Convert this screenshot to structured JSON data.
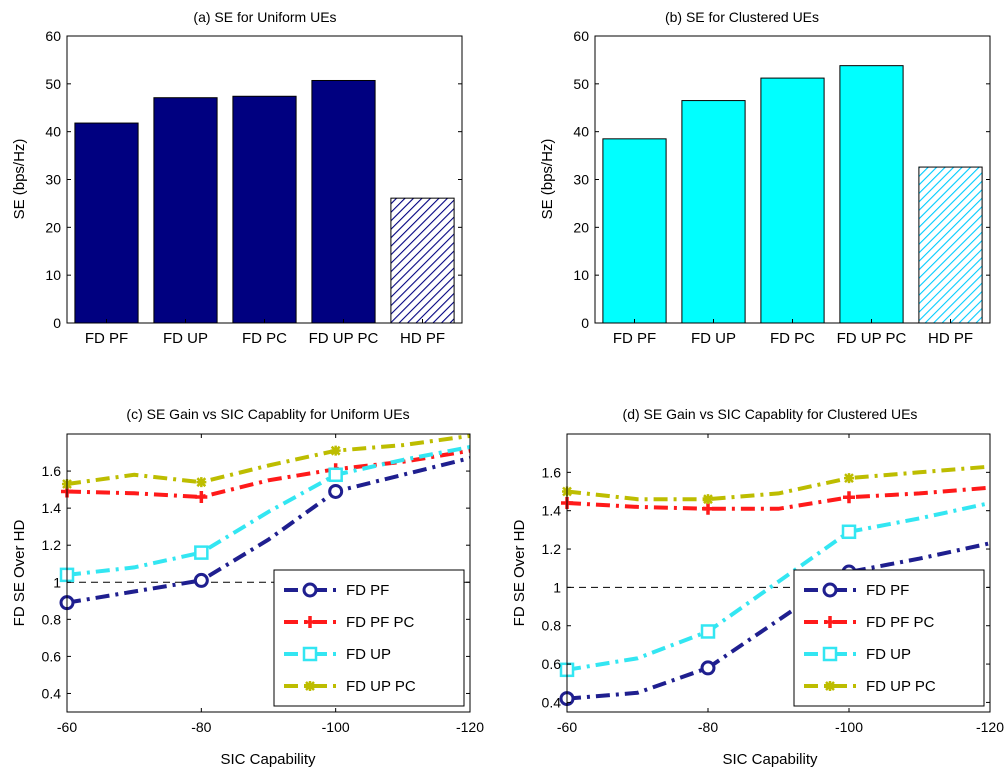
{
  "chart_data": [
    {
      "id": "a",
      "type": "bar",
      "title": "(a) SE for Uniform UEs",
      "ylabel": "SE (bps/Hz)",
      "xlabel": "",
      "ylim": [
        0,
        60
      ],
      "yticks": [
        0,
        10,
        20,
        30,
        40,
        50,
        60
      ],
      "categories": [
        "FD PF",
        "FD UP",
        "FD PC",
        "FD UP  PC",
        "HD PF"
      ],
      "values": [
        41.8,
        47.1,
        47.4,
        50.7,
        26.1
      ],
      "bar_color": "#000080",
      "hatched_category_index": 4,
      "grid": false
    },
    {
      "id": "b",
      "type": "bar",
      "title": "(b) SE for Clustered UEs",
      "ylabel": "SE (bps/Hz)",
      "xlabel": "",
      "ylim": [
        0,
        60
      ],
      "yticks": [
        0,
        10,
        20,
        30,
        40,
        50,
        60
      ],
      "categories": [
        "FD PF",
        "FD UP",
        "FD PC",
        "FD UP  PC",
        "HD PF"
      ],
      "values": [
        38.5,
        46.5,
        51.2,
        53.8,
        32.6
      ],
      "bar_color": "#00FFFF",
      "hatched_category_index": 4,
      "grid": false
    },
    {
      "id": "c",
      "type": "line",
      "title": "(c) SE Gain vs SIC Capablity for Uniform UEs",
      "xlabel": "SIC Capability",
      "ylabel": "FD SE Over HD",
      "x": [
        -60,
        -70,
        -80,
        -90,
        -100,
        -110,
        -120
      ],
      "xlim": [
        -60,
        -120
      ],
      "ylim": [
        0.3,
        1.8
      ],
      "xticks": [
        -60,
        -80,
        -100,
        -120
      ],
      "yticks": [
        0.4,
        0.6,
        0.8,
        1,
        1.2,
        1.4,
        1.6
      ],
      "reference_line": 1,
      "legend_position": "lower-right",
      "series": [
        {
          "name": "FD PF",
          "color": "#1F1F8F",
          "marker": "circle",
          "values": [
            0.89,
            0.95,
            1.01,
            1.23,
            1.49,
            1.58,
            1.67
          ]
        },
        {
          "name": "FD PF PC",
          "color": "#FF1A1A",
          "marker": "plus",
          "values": [
            1.49,
            1.48,
            1.46,
            1.55,
            1.61,
            1.65,
            1.71
          ]
        },
        {
          "name": "FD UP",
          "color": "#33E6F2",
          "marker": "square",
          "values": [
            1.04,
            1.08,
            1.16,
            1.38,
            1.58,
            1.66,
            1.73
          ]
        },
        {
          "name": "FD UP PC",
          "color": "#BDBD00",
          "marker": "star",
          "values": [
            1.53,
            1.58,
            1.54,
            1.63,
            1.71,
            1.74,
            1.79
          ]
        }
      ]
    },
    {
      "id": "d",
      "type": "line",
      "title": "(d) SE Gain vs SIC Capablity for Clustered UEs",
      "xlabel": "SIC Capability",
      "ylabel": "FD SE Over HD",
      "x": [
        -60,
        -70,
        -80,
        -90,
        -100,
        -110,
        -120
      ],
      "xlim": [
        -60,
        -120
      ],
      "ylim": [
        0.35,
        1.8
      ],
      "xticks": [
        -60,
        -80,
        -100,
        -120
      ],
      "yticks": [
        0.4,
        0.6,
        0.8,
        1,
        1.2,
        1.4,
        1.6
      ],
      "reference_line": 1,
      "legend_position": "lower-right",
      "series": [
        {
          "name": "FD PF",
          "color": "#1F1F8F",
          "marker": "circle",
          "values": [
            0.42,
            0.45,
            0.58,
            0.83,
            1.08,
            1.15,
            1.23
          ]
        },
        {
          "name": "FD PF PC",
          "color": "#FF1A1A",
          "marker": "plus",
          "values": [
            1.44,
            1.42,
            1.41,
            1.41,
            1.47,
            1.49,
            1.52
          ]
        },
        {
          "name": "FD UP",
          "color": "#33E6F2",
          "marker": "square",
          "values": [
            0.57,
            0.63,
            0.77,
            1.03,
            1.29,
            1.36,
            1.44
          ]
        },
        {
          "name": "FD UP PC",
          "color": "#BDBD00",
          "marker": "star",
          "values": [
            1.5,
            1.46,
            1.46,
            1.49,
            1.57,
            1.6,
            1.63
          ]
        }
      ]
    }
  ]
}
